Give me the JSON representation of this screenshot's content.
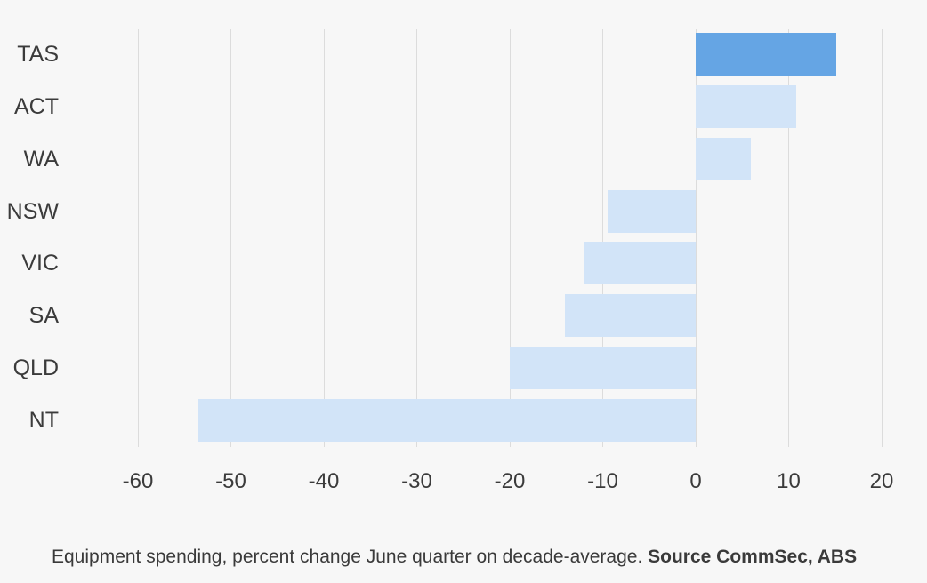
{
  "chart_data": {
    "type": "bar",
    "orientation": "horizontal",
    "title": "",
    "xlabel": "",
    "ylabel": "",
    "categories": [
      "TAS",
      "ACT",
      "WA",
      "NSW",
      "VIC",
      "SA",
      "QLD",
      "NT"
    ],
    "values": [
      15.1,
      10.8,
      5.9,
      -9.5,
      -12.0,
      -14.1,
      -20.0,
      -53.5
    ],
    "x_ticks": [
      -60,
      -50,
      -40,
      -30,
      -20,
      -10,
      0,
      10,
      20
    ],
    "xlim": [
      -66,
      23
    ],
    "grid": "vertical",
    "legend": "none",
    "highlight_category": "TAS",
    "caption": "Equipment spending, percent change June quarter on decade-average. ",
    "source": "Source CommSec, ABS",
    "colors": {
      "highlight_bar": "#65a5e4",
      "default_bar": "#d2e4f8",
      "background": "#f7f7f7",
      "gridline": "#dcdcdc",
      "text": "#3b3b3b"
    }
  }
}
